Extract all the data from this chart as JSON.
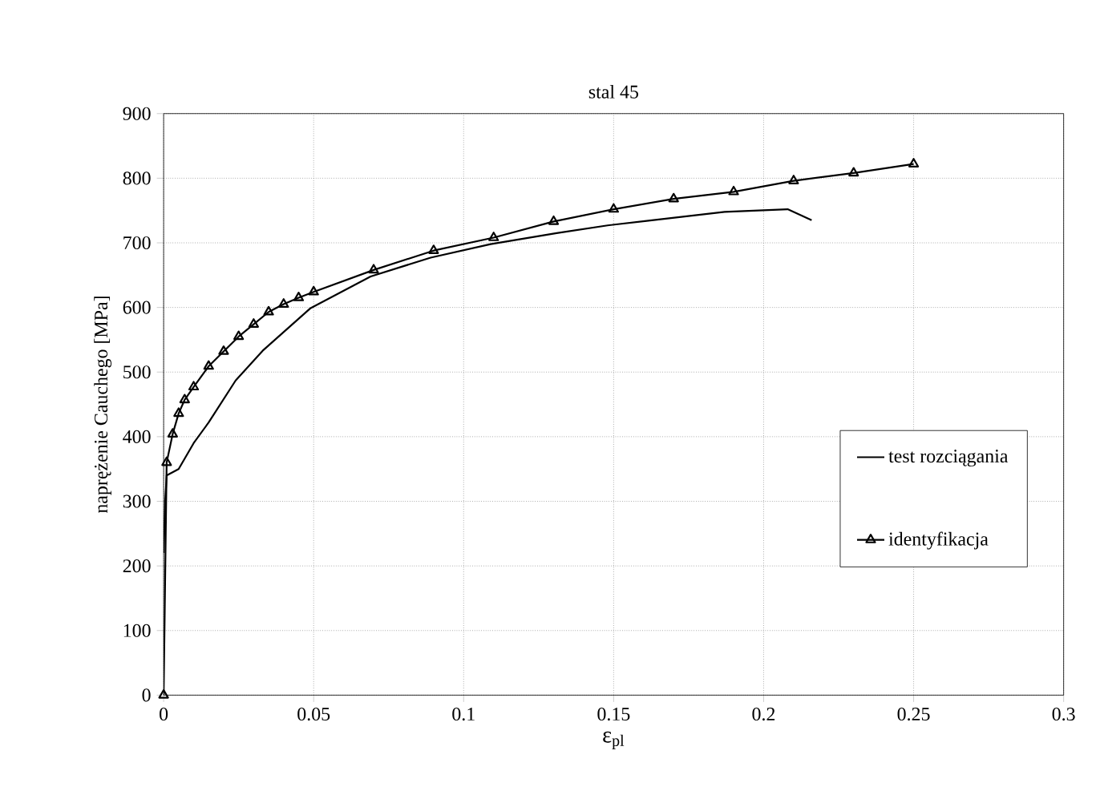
{
  "chart_data": {
    "type": "line",
    "title": "stal 45",
    "xlabel": "ε$_{pl}$",
    "ylabel": "naprężenie Cauchego [MPa]",
    "xlim": [
      0,
      0.3
    ],
    "ylim": [
      0,
      900
    ],
    "xticks": [
      0,
      0.05,
      0.1,
      0.15,
      0.2,
      0.25,
      0.3
    ],
    "yticks": [
      0,
      100,
      200,
      300,
      400,
      500,
      600,
      700,
      800,
      900
    ],
    "grid": true,
    "legend": "right",
    "line_style": "solid",
    "series": [
      {
        "name": "test rozciągania",
        "color": "#000000",
        "marker": "none",
        "x": [
          0,
          0.0005,
          0.001,
          0.005,
          0.01,
          0.015,
          0.024,
          0.033,
          0.049,
          0.069,
          0.089,
          0.109,
          0.131,
          0.148,
          0.161,
          0.187,
          0.208,
          0.216
        ],
        "values": [
          220,
          300,
          340,
          350,
          390,
          422,
          487,
          533,
          599,
          648,
          677,
          698,
          715,
          727,
          734,
          748,
          752,
          735
        ]
      },
      {
        "name": "identyfikacja",
        "color": "#000000",
        "marker": "triangle",
        "x": [
          0,
          0.001,
          0.003,
          0.005,
          0.007,
          0.01,
          0.015,
          0.02,
          0.025,
          0.03,
          0.035,
          0.04,
          0.045,
          0.05,
          0.07,
          0.09,
          0.11,
          0.13,
          0.15,
          0.17,
          0.19,
          0.21,
          0.23,
          0.25
        ],
        "values": [
          0,
          360,
          404,
          436,
          457,
          477,
          509,
          532,
          555,
          574,
          593,
          605,
          615,
          624,
          658,
          688,
          708,
          733,
          752,
          768,
          779,
          796,
          808,
          822
        ]
      }
    ]
  }
}
